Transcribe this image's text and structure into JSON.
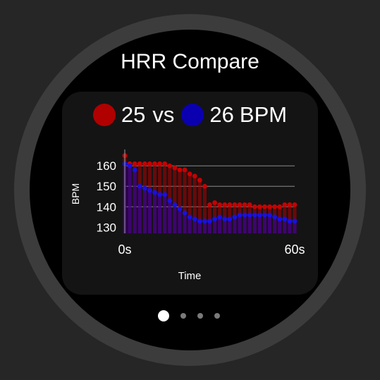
{
  "screen": {
    "title": "HRR Compare"
  },
  "legend": {
    "a_value": "25",
    "a_color": "#b00000",
    "vs_label": "vs",
    "b_value": "26",
    "b_color": "#0a00b0",
    "unit": "BPM"
  },
  "pager": {
    "count": 4,
    "active": 0
  },
  "chart_data": {
    "type": "bar",
    "ylabel": "BPM",
    "xlabel": "Time",
    "x_tick_labels": [
      "0s",
      "60s"
    ],
    "y_ticks": [
      130,
      140,
      150,
      160
    ],
    "ylim": [
      127,
      168
    ],
    "grid": true,
    "series": [
      {
        "color": "#b00000",
        "values": [
          165,
          161,
          161,
          161,
          161,
          161,
          161,
          161,
          161,
          160,
          159,
          158,
          158,
          156,
          155,
          153,
          150,
          141,
          142,
          141,
          141,
          141,
          141,
          141,
          141,
          141,
          140,
          140,
          140,
          140,
          140,
          140,
          141,
          141,
          141
        ]
      },
      {
        "color": "#1a00c8",
        "values": [
          161,
          160,
          158,
          150,
          149,
          148,
          147,
          146,
          146,
          143,
          141,
          139,
          137,
          135,
          134,
          133,
          133,
          133,
          134,
          135,
          134,
          134,
          135,
          136,
          136,
          136,
          136,
          136,
          136,
          136,
          135,
          134,
          134,
          133,
          133
        ]
      }
    ]
  }
}
